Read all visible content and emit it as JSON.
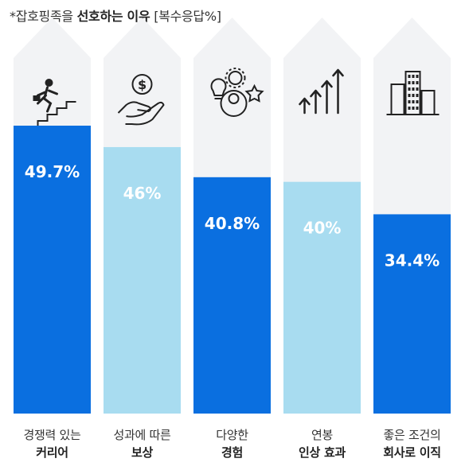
{
  "title": {
    "prefix": "*잡호핑족을",
    "bold": "선호하는 이유",
    "suffix": "[복수응답%]"
  },
  "colors": {
    "background_arrow": "#f2f3f5",
    "dark_bar": "#0a6fe0",
    "light_bar": "#a8dcf0",
    "label_on_dark": "#ffffff",
    "label_on_light": "#ffffff"
  },
  "chart_data": {
    "type": "bar",
    "title": "*잡호핑족을 선호하는 이유 [복수응답%]",
    "categories": [
      [
        "경쟁력 있는",
        "커리어"
      ],
      [
        "성과에 따른",
        "보상"
      ],
      [
        "다양한",
        "경험"
      ],
      [
        "연봉",
        "인상 효과"
      ],
      [
        "좋은 조건의",
        "회사로 이직"
      ]
    ],
    "values": [
      49.7,
      46,
      40.8,
      40,
      34.4
    ],
    "value_labels": [
      "49.7%",
      "46%",
      "40.8%",
      "40%",
      "34.4%"
    ],
    "bar_styles": [
      "dark",
      "light",
      "dark",
      "light",
      "dark"
    ],
    "icons": [
      "career-stairs-icon",
      "money-hand-icon",
      "experience-icon",
      "salary-arrows-icon",
      "company-buildings-icon"
    ],
    "ylim": [
      0,
      70
    ],
    "unit": "%"
  }
}
